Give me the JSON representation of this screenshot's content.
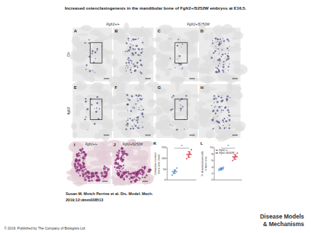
{
  "title": "Increased osteoclastogenesis in the mandibular bone of Fgfr2+/S252W embryos at E16.5.",
  "column_labels": [
    "Fgfr2+/+",
    "Fgfr2+/S252W"
  ],
  "row_labels": [
    "Ctr",
    "Itgb3"
  ],
  "panels": [
    "A",
    "B",
    "C",
    "D",
    "E",
    "F",
    "G",
    "H",
    "I",
    "J",
    "K",
    "L"
  ],
  "citation": "Susan M. Motch Perrine et al. Dis. Model. Mech.",
  "citation_ref": "2019;12:dmm038513",
  "copyright": "© 2019. Published by The Company of Biologists Ltd",
  "journal": [
    "Disease Models",
    "& Mechanisms"
  ],
  "chart_data": [
    {
      "type": "dot",
      "ylabel": [
        "Osteoclast number/",
        "bone area (mm²)"
      ],
      "ylim": [
        0,
        150
      ],
      "yticks": [
        0,
        50,
        100,
        150
      ],
      "categories": [
        null,
        null
      ],
      "series": [
        {
          "color": "#3b7dc4",
          "values": [
            38,
            null
          ],
          "errors": [
            8,
            null
          ],
          "points": [
            [
              22,
              30,
              45,
              55
            ],
            null
          ]
        },
        {
          "color": "#d7262b",
          "values": [
            null,
            118
          ],
          "errors": [
            null,
            14
          ],
          "points": [
            null,
            [
              98,
              110,
              125,
              140
            ]
          ]
        }
      ],
      "annotations": [
        "*"
      ]
    },
    {
      "type": "dot",
      "ylabel": [
        "% of osteoclasts/cells",
        "in bone area"
      ],
      "ylim": [
        0,
        10
      ],
      "yticks": [
        0,
        2,
        4,
        6,
        8,
        10
      ],
      "categories": [
        null,
        null
      ],
      "legend": "top-left",
      "series": [
        {
          "name": "Fgfr2+/+",
          "color": "#3b7dc4",
          "values": [
            3.4,
            null
          ],
          "errors": [
            0.4,
            null
          ],
          "points": [
            [
              2.9,
              3.2,
              3.6,
              3.9
            ],
            null
          ]
        },
        {
          "name": "Fgfr2+/S252W",
          "color": "#d7262b",
          "values": [
            null,
            7.1
          ],
          "errors": [
            null,
            0.8
          ],
          "points": [
            null,
            [
              6.0,
              6.7,
              7.5,
              8.3
            ]
          ]
        }
      ],
      "annotations": [
        "*"
      ]
    }
  ]
}
